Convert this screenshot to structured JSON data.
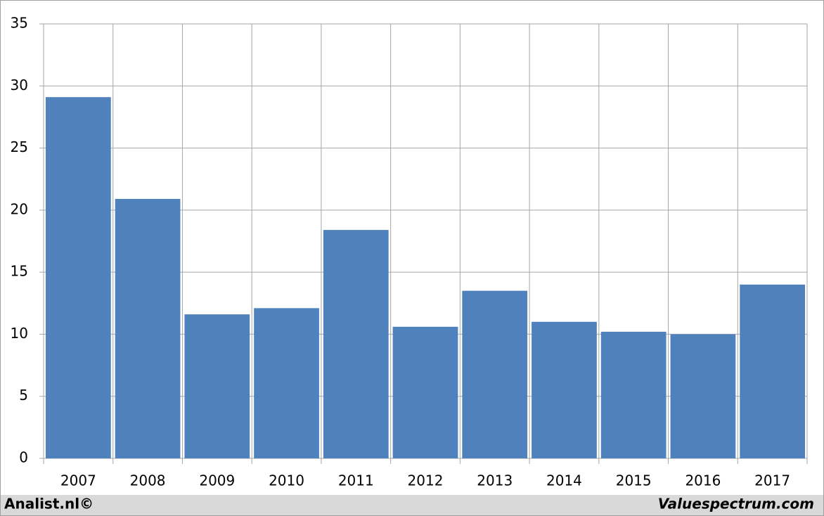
{
  "chart_data": {
    "type": "bar",
    "categories": [
      "2007",
      "2008",
      "2009",
      "2010",
      "2011",
      "2012",
      "2013",
      "2014",
      "2015",
      "2016",
      "2017"
    ],
    "values": [
      29.1,
      20.9,
      11.6,
      12.1,
      18.4,
      10.6,
      13.5,
      11.0,
      10.2,
      10.0,
      14.0
    ],
    "color": "#4f81bd",
    "ylim": [
      0,
      35
    ],
    "yticks": [
      0,
      5,
      10,
      15,
      20,
      25,
      30,
      35
    ],
    "grid": true,
    "source_left": "Analist.nl©",
    "source_right": "Valuespectrum.com"
  }
}
